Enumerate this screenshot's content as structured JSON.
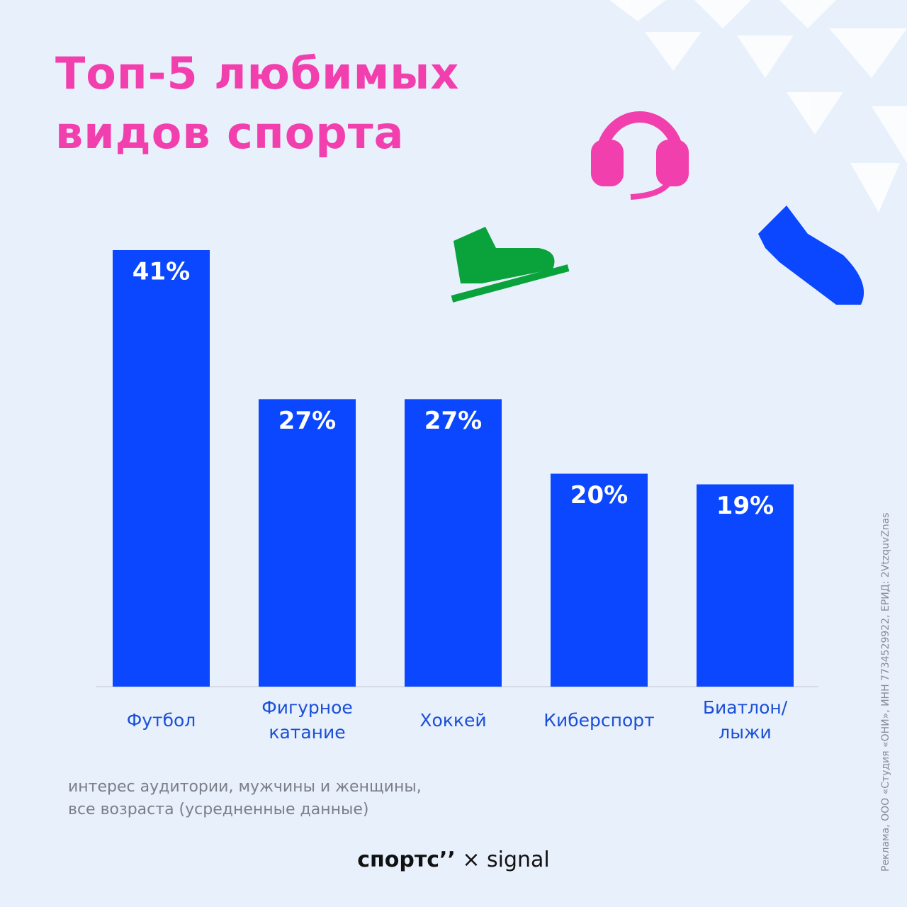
{
  "chart_data": {
    "type": "bar",
    "title": "Топ-5 любимых видов спорта",
    "categories": [
      "Футбол",
      "Фигурное\nкатание",
      "Хоккей",
      "Киберспорт",
      "Биатлон/\nлыжи"
    ],
    "values": [
      41,
      27,
      27,
      20,
      19
    ],
    "value_labels": [
      "41%",
      "27%",
      "27%",
      "20%",
      "19%"
    ],
    "color": "#0a47ff",
    "note": "интерес аудитории, мужчины и женщины,\nвсе возраста (усредненные данные)",
    "brand": "спортс’’",
    "cross": "×",
    "partner": "signal",
    "disclaimer": "Реклама, ООО «Студия «ОНИ», ИНН 7734529922, ЕРИД: 2VtzquvZnas"
  }
}
